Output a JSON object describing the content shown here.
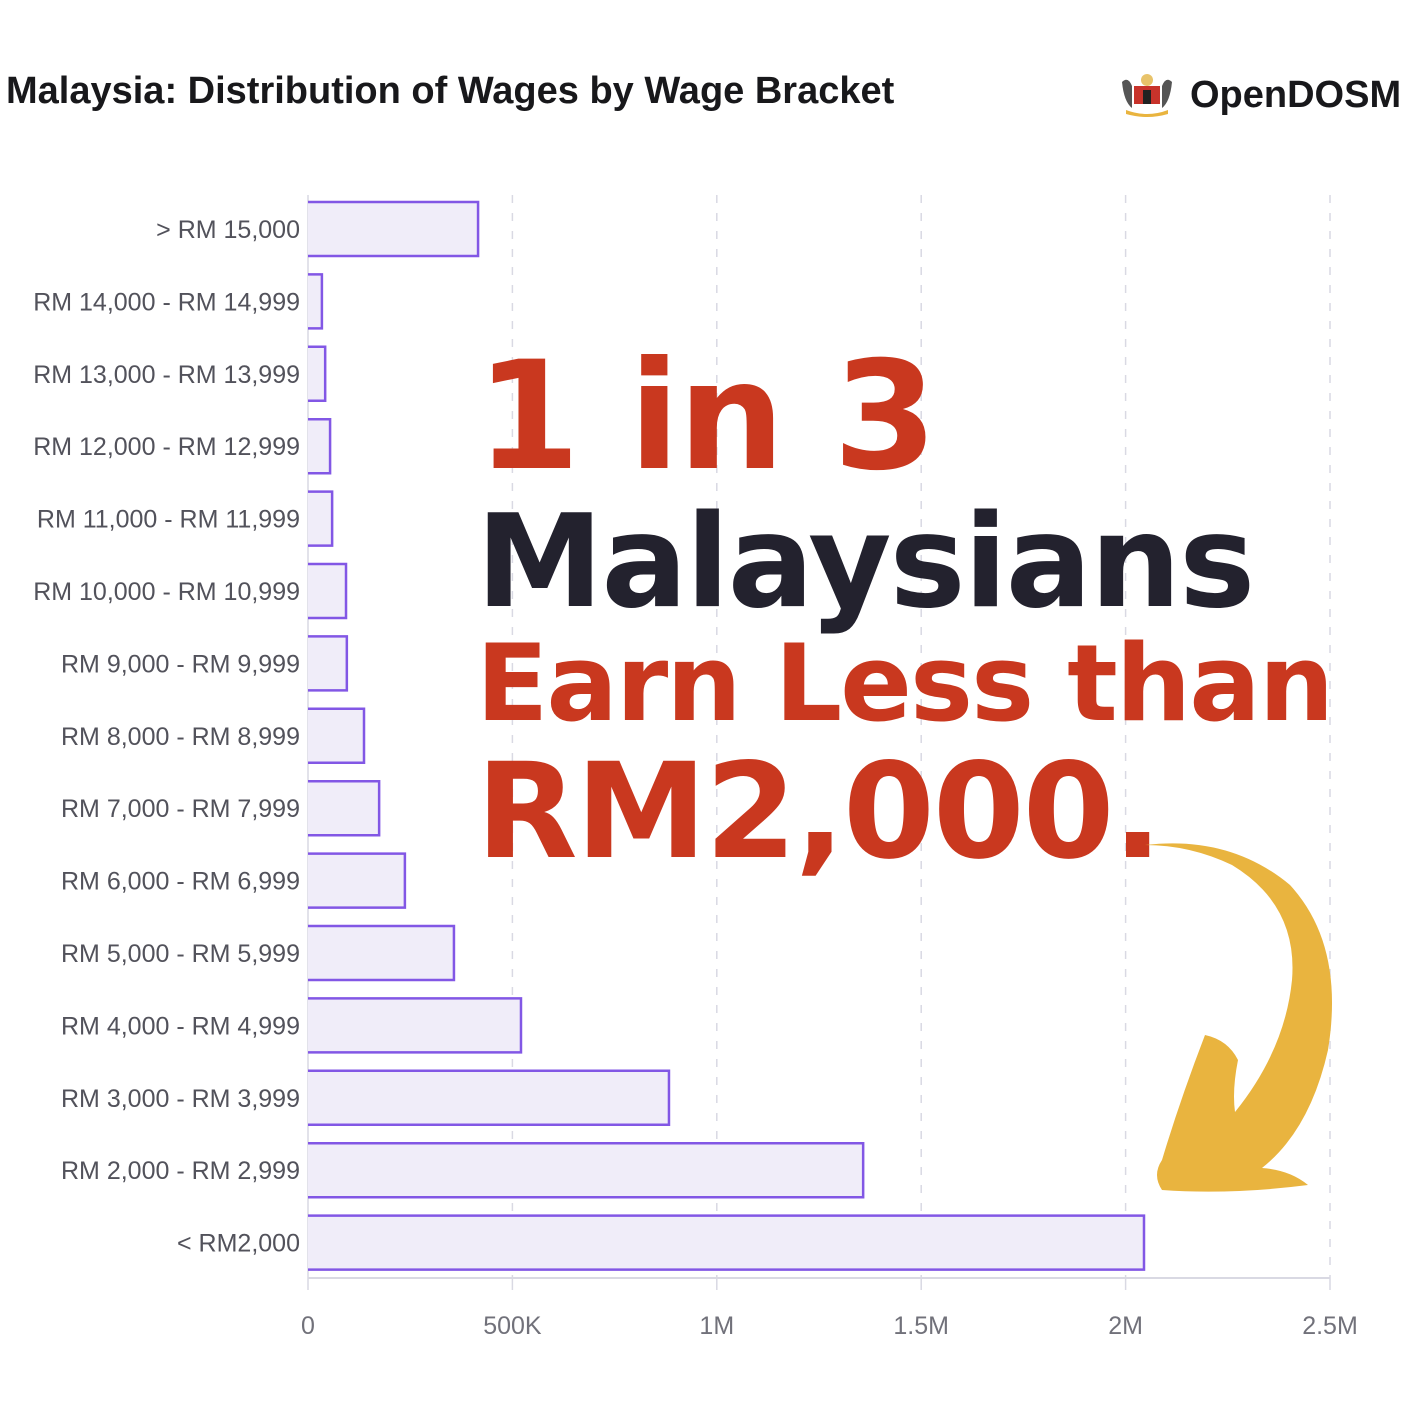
{
  "header": {
    "title": "Malaysia: Distribution of Wages by Wage Bracket",
    "brand": "OpenDOSM",
    "logo_icon": "malaysia-coat-of-arms-icon"
  },
  "overlay": {
    "line1": "1 in 3",
    "line2": "Malaysians",
    "line3": "Earn Less than",
    "line4": "RM2,000.",
    "accent_color": "#c9381f",
    "dark_color": "#23222e",
    "arrow_color": "#e9b43f",
    "arrow_icon": "curved-arrow-icon"
  },
  "chart_data": {
    "type": "bar",
    "orientation": "horizontal",
    "title": "Malaysia: Distribution of Wages by Wage Bracket",
    "categories": [
      "> RM 15,000",
      "RM 14,000 - RM 14,999",
      "RM 13,000 - RM 13,999",
      "RM 12,000 - RM 12,999",
      "RM 11,000 - RM 11,999",
      "RM 10,000 - RM 10,999",
      "RM 9,000 - RM 9,999",
      "RM 8,000 - RM 8,999",
      "RM 7,000 - RM 7,999",
      "RM 6,000 - RM 6,999",
      "RM 5,000 - RM 5,999",
      "RM 4,000 - RM 4,999",
      "RM 3,000 - RM 3,999",
      "RM 2,000 - RM 2,999",
      "< RM2,000"
    ],
    "values": [
      416000,
      34000,
      42000,
      54000,
      59000,
      93000,
      95000,
      137000,
      174000,
      237000,
      357000,
      521000,
      883000,
      1358000,
      2045000
    ],
    "xlim": [
      0,
      2500000
    ],
    "xticks": [
      0,
      500000,
      1000000,
      1500000,
      2000000,
      2500000
    ],
    "xtick_labels": [
      "0",
      "500K",
      "1M",
      "1.5M",
      "2M",
      "2.5M"
    ],
    "grid": "vertical dashed",
    "bar_fill": "#f0edf9",
    "bar_stroke": "#8257e5"
  }
}
